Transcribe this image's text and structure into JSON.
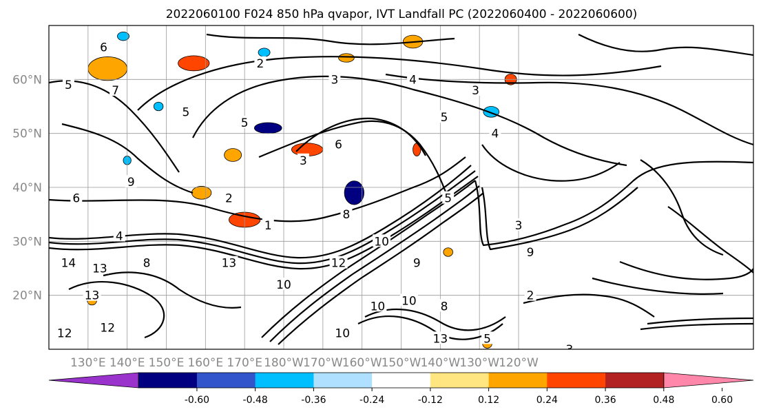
{
  "chart_data": {
    "type": "heatmap",
    "title": "2022060100 F024 850 hPa qvapor, IVT Landfall PC (2022060400 - 2022060600)",
    "xlabel": "",
    "ylabel": "",
    "lon_range": [
      120,
      300
    ],
    "lat_range": [
      10,
      70
    ],
    "grid": true,
    "x_ticks": [
      {
        "lon": 130,
        "label": "130°E"
      },
      {
        "lon": 140,
        "label": "140°E"
      },
      {
        "lon": 150,
        "label": "150°E"
      },
      {
        "lon": 160,
        "label": "160°E"
      },
      {
        "lon": 170,
        "label": "170°E"
      },
      {
        "lon": 180,
        "label": "180°W"
      },
      {
        "lon": 190,
        "label": "170°W"
      },
      {
        "lon": 200,
        "label": "160°W"
      },
      {
        "lon": 210,
        "label": "150°W"
      },
      {
        "lon": 220,
        "label": "140°W"
      },
      {
        "lon": 230,
        "label": "130°W"
      },
      {
        "lon": 240,
        "label": "120°W"
      }
    ],
    "y_ticks": [
      {
        "lat": 20,
        "label": "20°N"
      },
      {
        "lat": 30,
        "label": "30°N"
      },
      {
        "lat": 40,
        "label": "40°N"
      },
      {
        "lat": 50,
        "label": "50°N"
      },
      {
        "lat": 60,
        "label": "60°N"
      }
    ],
    "colorbar": {
      "bounds": [
        -0.72,
        -0.6,
        -0.48,
        -0.36,
        -0.24,
        -0.12,
        0.12,
        0.24,
        0.36,
        0.48,
        0.6,
        0.72
      ],
      "colors": [
        "#9933cc",
        "#000080",
        "#3355cc",
        "#00bfff",
        "#b0e0ff",
        "#ffffff",
        "#ffe680",
        "#ffa500",
        "#ff4500",
        "#b22222",
        "#ff88aa"
      ],
      "extend": "both",
      "tick_labels": [
        "-0.60",
        "-0.48",
        "-0.36",
        "-0.24",
        "-0.12",
        "0.12",
        "0.24",
        "0.36",
        "0.48",
        "0.60"
      ]
    },
    "filled_regions": [
      {
        "lon": 135,
        "lat": 62,
        "rx": 5,
        "ry": 2.2,
        "value": 0.3
      },
      {
        "lon": 157,
        "lat": 63,
        "rx": 4,
        "ry": 1.4,
        "value": 0.4
      },
      {
        "lon": 167,
        "lat": 46,
        "rx": 2.2,
        "ry": 1.2,
        "value": 0.3
      },
      {
        "lon": 186,
        "lat": 47,
        "rx": 4,
        "ry": 1.2,
        "value": 0.4
      },
      {
        "lon": 176,
        "lat": 51,
        "rx": 3.5,
        "ry": 1,
        "value": -0.5
      },
      {
        "lon": 159,
        "lat": 39,
        "rx": 2.5,
        "ry": 1.2,
        "value": 0.3
      },
      {
        "lon": 170,
        "lat": 34,
        "rx": 4,
        "ry": 1.4,
        "value": 0.4
      },
      {
        "lon": 198,
        "lat": 39,
        "rx": 2.5,
        "ry": 2.2,
        "value": -0.5
      },
      {
        "lon": 214,
        "lat": 47,
        "rx": 1,
        "ry": 1.2,
        "value": 0.4
      },
      {
        "lon": 233,
        "lat": 54,
        "rx": 2,
        "ry": 1,
        "value": -0.3
      },
      {
        "lon": 213,
        "lat": 67,
        "rx": 2.5,
        "ry": 1.2,
        "value": 0.3
      },
      {
        "lon": 238,
        "lat": 60,
        "rx": 1.5,
        "ry": 1,
        "value": 0.4
      },
      {
        "lon": 196,
        "lat": 64,
        "rx": 2,
        "ry": 0.8,
        "value": 0.3
      },
      {
        "lon": 148,
        "lat": 55,
        "rx": 1.2,
        "ry": 0.8,
        "value": -0.3
      },
      {
        "lon": 139,
        "lat": 68,
        "rx": 1.5,
        "ry": 0.8,
        "value": -0.3
      },
      {
        "lon": 131,
        "lat": 19,
        "rx": 1.2,
        "ry": 0.8,
        "value": 0.3
      },
      {
        "lon": 222,
        "lat": 28,
        "rx": 1.2,
        "ry": 0.8,
        "value": 0.3
      },
      {
        "lon": 232,
        "lat": 11,
        "rx": 1.2,
        "ry": 0.8,
        "value": 0.3
      },
      {
        "lon": 140,
        "lat": 45,
        "rx": 1,
        "ry": 0.8,
        "value": -0.3
      },
      {
        "lon": 175,
        "lat": 65,
        "rx": 1.5,
        "ry": 0.8,
        "value": -0.3
      }
    ],
    "contour_labels": [
      {
        "lon": 134,
        "lat": 66,
        "text": "6"
      },
      {
        "lon": 125,
        "lat": 59,
        "text": "5"
      },
      {
        "lon": 137,
        "lat": 58,
        "text": "7"
      },
      {
        "lon": 174,
        "lat": 63,
        "text": "2"
      },
      {
        "lon": 193,
        "lat": 60,
        "text": "3"
      },
      {
        "lon": 229,
        "lat": 58,
        "text": "3"
      },
      {
        "lon": 213,
        "lat": 60,
        "text": "4"
      },
      {
        "lon": 221,
        "lat": 53,
        "text": "5"
      },
      {
        "lon": 234,
        "lat": 50,
        "text": "4"
      },
      {
        "lon": 170,
        "lat": 52,
        "text": "5"
      },
      {
        "lon": 185,
        "lat": 45,
        "text": "3"
      },
      {
        "lon": 194,
        "lat": 48,
        "text": "6"
      },
      {
        "lon": 155,
        "lat": 54,
        "text": "5"
      },
      {
        "lon": 141,
        "lat": 41,
        "text": "9"
      },
      {
        "lon": 127,
        "lat": 38,
        "text": "6"
      },
      {
        "lon": 166,
        "lat": 38,
        "text": "2"
      },
      {
        "lon": 176,
        "lat": 33,
        "text": "1"
      },
      {
        "lon": 222,
        "lat": 38,
        "text": "5"
      },
      {
        "lon": 240,
        "lat": 33,
        "text": "3"
      },
      {
        "lon": 138,
        "lat": 31,
        "text": "4"
      },
      {
        "lon": 125,
        "lat": 26,
        "text": "14"
      },
      {
        "lon": 133,
        "lat": 25,
        "text": "13"
      },
      {
        "lon": 131,
        "lat": 20,
        "text": "13"
      },
      {
        "lon": 124,
        "lat": 13,
        "text": "12"
      },
      {
        "lon": 135,
        "lat": 14,
        "text": "12"
      },
      {
        "lon": 145,
        "lat": 26,
        "text": "8"
      },
      {
        "lon": 166,
        "lat": 26,
        "text": "13"
      },
      {
        "lon": 180,
        "lat": 22,
        "text": "10"
      },
      {
        "lon": 194,
        "lat": 26,
        "text": "12"
      },
      {
        "lon": 205,
        "lat": 30,
        "text": "10"
      },
      {
        "lon": 204,
        "lat": 18,
        "text": "10"
      },
      {
        "lon": 212,
        "lat": 19,
        "text": "10"
      },
      {
        "lon": 214,
        "lat": 26,
        "text": "9"
      },
      {
        "lon": 221,
        "lat": 18,
        "text": "8"
      },
      {
        "lon": 243,
        "lat": 28,
        "text": "9"
      },
      {
        "lon": 243,
        "lat": 20,
        "text": "2"
      },
      {
        "lon": 232,
        "lat": 12,
        "text": "5"
      },
      {
        "lon": 253,
        "lat": 10,
        "text": "3"
      },
      {
        "lon": 220,
        "lat": 12,
        "text": "13"
      },
      {
        "lon": 195,
        "lat": 13,
        "text": "10"
      },
      {
        "lon": 196,
        "lat": 35,
        "text": "8"
      }
    ]
  }
}
